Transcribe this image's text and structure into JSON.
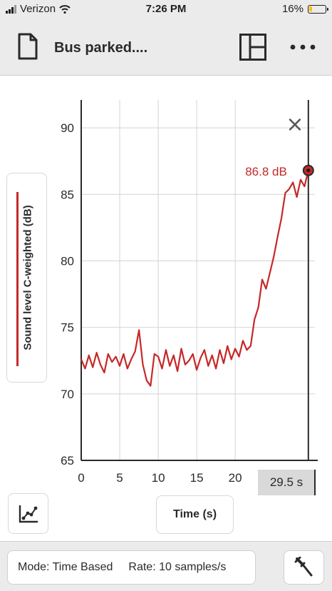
{
  "status_bar": {
    "carrier": "Verizon",
    "time": "7:26 PM",
    "battery_percent": "16%",
    "battery_level": 0.16,
    "battery_color": "#f5c400"
  },
  "toolbar": {
    "title": "Bus parked....",
    "icons": [
      "document-icon",
      "layout-icon",
      "more-icon"
    ]
  },
  "graph": {
    "y_label": "Sound level C-weighted (dB)",
    "x_label": "Time (s)",
    "series_color": "#c62828",
    "y_ticks": [
      "90",
      "85",
      "80",
      "75",
      "70",
      "65"
    ],
    "x_ticks": [
      "0",
      "5",
      "10",
      "15",
      "20"
    ],
    "cursor_time": "29.5 s",
    "latest_value_label": "86.8 dB",
    "close_glyph": "×"
  },
  "chart_data": {
    "type": "line",
    "xlabel": "Time (s)",
    "ylabel": "Sound level C-weighted (dB)",
    "xlim": [
      0,
      29.5
    ],
    "ylim": [
      65,
      92
    ],
    "grid": true,
    "x": [
      0,
      0.5,
      1,
      1.5,
      2,
      2.5,
      3,
      3.5,
      4,
      4.5,
      5,
      5.5,
      6,
      6.5,
      7,
      7.5,
      8,
      8.5,
      9,
      9.5,
      10,
      10.5,
      11,
      11.5,
      12,
      12.5,
      13,
      13.5,
      14,
      14.5,
      15,
      15.5,
      16,
      16.5,
      17,
      17.5,
      18,
      18.5,
      19,
      19.5,
      20,
      20.5,
      21,
      21.5,
      22,
      22.5,
      23,
      23.5,
      24,
      24.5,
      25,
      25.5,
      26,
      26.5,
      27,
      27.5,
      28,
      28.5,
      29,
      29.5
    ],
    "y": [
      72.6,
      71.9,
      72.9,
      72.0,
      73.1,
      72.2,
      71.6,
      73.0,
      72.4,
      72.8,
      72.1,
      73.0,
      71.9,
      72.6,
      73.2,
      74.8,
      72.2,
      71.0,
      70.6,
      73.0,
      72.8,
      71.9,
      73.3,
      72.1,
      72.9,
      71.7,
      73.4,
      72.2,
      72.5,
      73.0,
      71.8,
      72.7,
      73.3,
      72.1,
      72.9,
      71.9,
      73.3,
      72.3,
      73.6,
      72.6,
      73.4,
      72.8,
      74.0,
      73.3,
      73.6,
      75.6,
      76.5,
      78.6,
      77.9,
      79.1,
      80.3,
      81.8,
      83.2,
      85.1,
      85.4,
      85.9,
      84.8,
      86.1,
      85.6,
      86.8
    ],
    "latest": 86.8
  },
  "bottom_bar": {
    "mode": "Mode: Time Based",
    "rate": "Rate: 10 samples/s"
  }
}
